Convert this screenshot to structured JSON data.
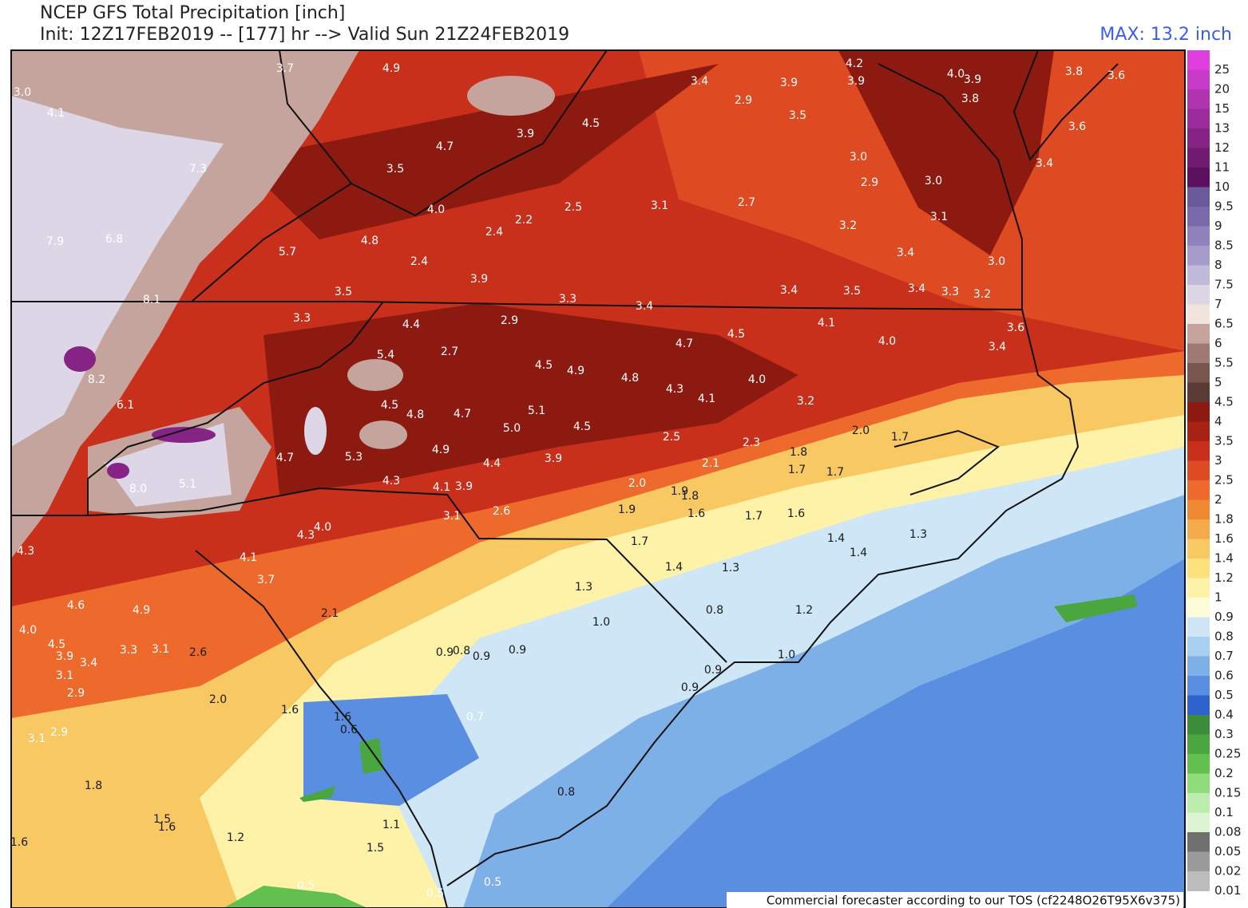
{
  "header": {
    "title": "NCEP GFS Total Precipitation [inch]",
    "subtitle": "Init: 12Z17FEB2019 -- [177] hr --> Valid Sun 21Z24FEB2019",
    "max_label": "MAX: 13.2 inch"
  },
  "colorbar": {
    "levels": [
      25,
      20,
      15,
      13,
      12,
      11,
      10,
      9.5,
      9,
      8.5,
      8,
      7.5,
      7,
      6.5,
      6,
      5.5,
      5,
      4.5,
      4,
      3.5,
      3,
      2.5,
      2,
      1.8,
      1.6,
      1.4,
      1.2,
      1,
      0.9,
      0.8,
      0.7,
      0.6,
      0.5,
      0.4,
      0.3,
      0.25,
      0.2,
      0.15,
      0.1,
      0.08,
      0.05,
      0.02,
      0.01
    ],
    "colors": [
      "#e13ee0",
      "#c83ac8",
      "#b034b0",
      "#9c2c9c",
      "#862486",
      "#701a70",
      "#5c1060",
      "#6a5a9c",
      "#7a6aac",
      "#8f82bd",
      "#a59ccc",
      "#c0bada",
      "#dcd6e6",
      "#f0e4dc",
      "#c4a49c",
      "#9e7a72",
      "#7a5650",
      "#5a3a34",
      "#8c1a10",
      "#a82214",
      "#c8301c",
      "#de4a22",
      "#ee6a2c",
      "#f08a32",
      "#f4aa4a",
      "#f8c862",
      "#fce27c",
      "#fdf2a8",
      "#fdfcd8",
      "#cfe6f6",
      "#a8cff0",
      "#7eb0e8",
      "#5a8ee0",
      "#2e62cc",
      "#3c8c3c",
      "#4aa63e",
      "#62c04e",
      "#8edc7a",
      "#bcecae",
      "#dcf4d4",
      "#707070",
      "#9a9a9a",
      "#bcbcbc"
    ]
  },
  "map_labels": [
    "3.7",
    "4.9",
    "3.0",
    "4.1",
    "7.3",
    "4.7",
    "3.9",
    "4.5",
    "3.5",
    "3.4",
    "3.9",
    "2.9",
    "3.5",
    "4.2",
    "3.9",
    "4.0",
    "3.9",
    "3.8",
    "3.8",
    "3.6",
    "3.6",
    "3.4",
    "3.0",
    "2.9",
    "3.0",
    "4.0",
    "2.5",
    "3.1",
    "2.7",
    "2.2",
    "2.4",
    "7.9",
    "6.8",
    "4.8",
    "5.7",
    "2.4",
    "3.9",
    "3.2",
    "3.1",
    "3.4",
    "3.0",
    "8.1",
    "3.5",
    "3.3",
    "3.4",
    "3.4",
    "3.5",
    "3.4",
    "3.3",
    "3.2",
    "3.3",
    "4.4",
    "2.9",
    "4.1",
    "3.6",
    "4.0",
    "3.4",
    "5.4",
    "2.7",
    "4.5",
    "4.7",
    "8.2",
    "4.5",
    "4.9",
    "4.8",
    "4.3",
    "4.1",
    "4.0",
    "3.2",
    "6.1",
    "4.5",
    "4.8",
    "4.7",
    "5.1",
    "5.0",
    "4.5",
    "2.5",
    "2.3",
    "2.0",
    "1.7",
    "4.7",
    "5.3",
    "4.9",
    "4.4",
    "3.9",
    "2.1",
    "1.8",
    "1.7",
    "1.7",
    "5.1",
    "8.0",
    "4.3",
    "4.1",
    "3.9",
    "2.0",
    "1.9",
    "1.8",
    "2.6",
    "3.1",
    "1.9",
    "1.6",
    "1.7",
    "1.6",
    "4.3",
    "4.0",
    "4.3",
    "4.1",
    "1.7",
    "1.4",
    "1.3",
    "3.7",
    "1.4",
    "1.3",
    "1.3",
    "1.4",
    "4.6",
    "4.9",
    "2.1",
    "1.0",
    "0.8",
    "1.2",
    "4.0",
    "4.5",
    "3.9",
    "3.4",
    "3.3",
    "3.1",
    "2.6",
    "0.9",
    "0.8",
    "0.9",
    "0.9",
    "1.0",
    "0.9",
    "3.1",
    "2.9",
    "2.0",
    "1.6",
    "0.9",
    "1.6",
    "0.6",
    "0.7",
    "3.1",
    "2.9",
    "1.8",
    "0.8",
    "1.5",
    "1.6",
    "1.1",
    "1.2",
    "1.5",
    "1.6",
    "0.5",
    "0.5",
    "0.5"
  ],
  "footer": "Commercial forecaster according to our TOS (cf2248O26T95X6v375)"
}
